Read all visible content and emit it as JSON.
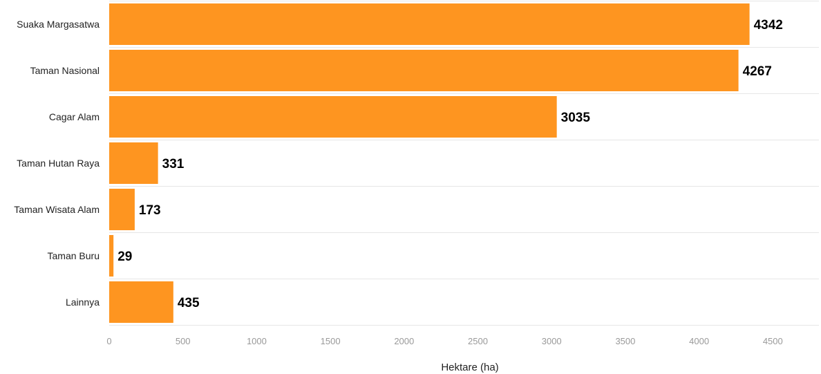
{
  "chart_data": {
    "type": "bar",
    "orientation": "horizontal",
    "categories": [
      "Suaka Margasatwa",
      "Taman Nasional",
      "Cagar Alam",
      "Taman Hutan Raya",
      "Taman Wisata Alam",
      "Taman Buru",
      "Lainnya"
    ],
    "values": [
      4342,
      4267,
      3035,
      331,
      173,
      29,
      435
    ],
    "xlabel": "Hektare (ha)",
    "ylabel": "",
    "xlim": [
      0,
      4800
    ],
    "xticks": [
      0,
      500,
      1000,
      1500,
      2000,
      2500,
      3000,
      3500,
      4000,
      4500
    ],
    "grid": true,
    "bar_color": "#fe9520"
  }
}
